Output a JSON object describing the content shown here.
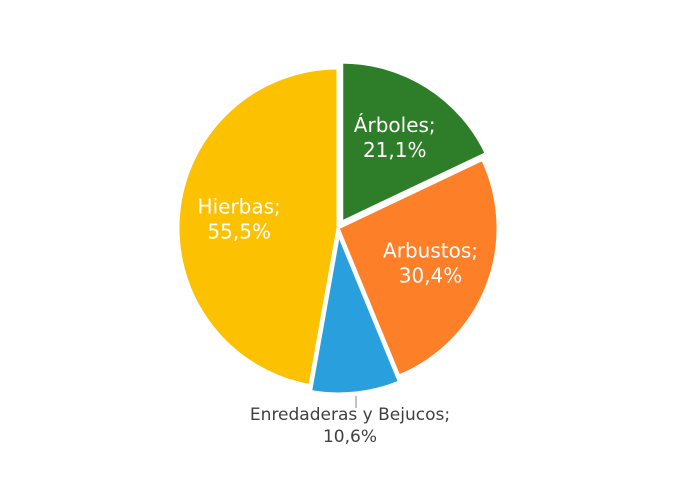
{
  "chart_data": {
    "type": "pie",
    "categories": [
      "Árboles",
      "Arbustos",
      "Enredaderas y Bejucos",
      "Hierbas"
    ],
    "values": [
      21.1,
      30.4,
      10.6,
      55.5
    ],
    "value_labels": [
      "21,1%",
      "30,4%",
      "10,6%",
      "55,5%"
    ],
    "label_separator": ";",
    "colors": [
      "#2e7d28",
      "#fd7f27",
      "#2a9fdd",
      "#fcc100"
    ],
    "outside_labels": [
      2
    ]
  }
}
